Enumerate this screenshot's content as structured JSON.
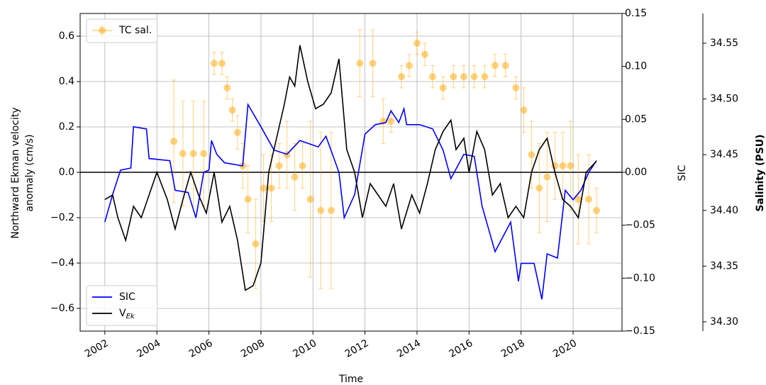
{
  "chart_data": {
    "type": "line",
    "xlabel": "Time",
    "ylabel": [
      "Northward Ekman velocity",
      "anomaly (cm/s)"
    ],
    "y2label": "SIC",
    "y2label_color": "#0000ff",
    "y3label": "Salinity (PSU)",
    "y3label_color": "#ffa500",
    "xlim": [
      2001.05,
      2021.88
    ],
    "xticks": [
      2002,
      2004,
      2006,
      2008,
      2010,
      2012,
      2014,
      2016,
      2018,
      2020
    ],
    "ylim": [
      -0.7,
      0.7
    ],
    "yticks": [
      {
        "value": -0.6,
        "label": "−0.6"
      },
      {
        "value": -0.4,
        "label": "−0.4"
      },
      {
        "value": -0.2,
        "label": "−0.2"
      },
      {
        "value": 0,
        "label": "0.0"
      },
      0.2,
      0.4,
      0.6
    ],
    "y2lim": [
      -0.15,
      0.15
    ],
    "y2ticks": [
      {
        "value": -0.15,
        "label": "−0.15"
      },
      {
        "value": -0.1,
        "label": "−0.10"
      },
      {
        "value": -0.05,
        "label": "−0.05"
      },
      {
        "value": 0,
        "label": "0.00"
      },
      0.05,
      {
        "value": 0.1,
        "label": "0.10"
      },
      0.15
    ],
    "y3lim": [
      34.2917,
      34.5767
    ],
    "y3ticks": [
      {
        "value": 34.3,
        "label": "34.30"
      },
      34.35,
      {
        "value": 34.4,
        "label": "34.40"
      },
      34.45,
      {
        "value": 34.5,
        "label": "34.50"
      },
      34.55
    ],
    "grid": true,
    "hline": 0,
    "series": [
      {
        "name": "SIC",
        "color": "#0000ff",
        "axis": "y2",
        "legend": "lower left",
        "x": [
          2002.0,
          2002.3,
          2002.6,
          2003.0,
          2003.1,
          2003.6,
          2003.7,
          2004.5,
          2004.7,
          2005.2,
          2005.5,
          2005.8,
          2006.0,
          2006.1,
          2006.3,
          2006.6,
          2007.3,
          2007.5,
          2008.0,
          2008.5,
          2009.0,
          2009.5,
          2010.2,
          2010.5,
          2011.0,
          2011.2,
          2011.6,
          2012.0,
          2012.4,
          2012.8,
          2013.0,
          2013.3,
          2013.5,
          2013.6,
          2014.1,
          2014.6,
          2015.0,
          2015.3,
          2015.8,
          2016.2,
          2016.5,
          2017.0,
          2017.6,
          2017.9,
          2018.0,
          2018.5,
          2018.8,
          2019.0,
          2019.4,
          2019.7,
          2020.0,
          2020.3,
          2020.6,
          2020.9
        ],
        "values": [
          -0.047,
          -0.021,
          0.002,
          0.004,
          0.043,
          0.041,
          0.013,
          0.011,
          -0.017,
          -0.019,
          -0.043,
          0,
          0.002,
          0.03,
          0.017,
          0.009,
          0.006,
          0.064,
          0.043,
          0.021,
          0.017,
          0.03,
          0.024,
          0.034,
          0,
          -0.043,
          -0.021,
          0.036,
          0.045,
          0.047,
          0.058,
          0.047,
          0.06,
          0.045,
          0.045,
          0.041,
          0.021,
          -0.006,
          0.017,
          0.015,
          -0.032,
          -0.075,
          -0.047,
          -0.103,
          -0.086,
          -0.086,
          -0.12,
          -0.077,
          -0.081,
          -0.017,
          -0.026,
          -0.017,
          0,
          0.011
        ]
      },
      {
        "name": "V",
        "name_sub": "Ek",
        "color": "#000000",
        "axis": "y",
        "legend": "lower left",
        "x": [
          2002.0,
          2002.3,
          2002.5,
          2002.8,
          2003.1,
          2003.4,
          2003.7,
          2004.0,
          2004.4,
          2004.7,
          2005.0,
          2005.3,
          2005.6,
          2005.9,
          2006.2,
          2006.5,
          2006.8,
          2007.1,
          2007.4,
          2007.7,
          2008.0,
          2008.3,
          2008.6,
          2008.9,
          2009.1,
          2009.3,
          2009.5,
          2009.8,
          2010.1,
          2010.4,
          2010.7,
          2011.0,
          2011.3,
          2011.6,
          2011.9,
          2012.2,
          2012.5,
          2012.8,
          2013.1,
          2013.4,
          2013.8,
          2014.1,
          2014.4,
          2014.7,
          2015.0,
          2015.3,
          2015.5,
          2015.8,
          2016.0,
          2016.3,
          2016.6,
          2016.9,
          2017.2,
          2017.5,
          2017.8,
          2018.1,
          2018.4,
          2018.7,
          2019.0,
          2019.3,
          2019.6,
          2019.9,
          2020.2,
          2020.5,
          2020.9
        ],
        "values": [
          -0.12,
          -0.1,
          -0.2,
          -0.3,
          -0.15,
          -0.2,
          -0.1,
          0.0,
          -0.12,
          -0.25,
          -0.12,
          0.0,
          -0.1,
          -0.18,
          0.0,
          -0.22,
          -0.15,
          -0.3,
          -0.52,
          -0.5,
          -0.4,
          0.0,
          0.15,
          0.3,
          0.42,
          0.38,
          0.56,
          0.4,
          0.28,
          0.3,
          0.35,
          0.5,
          0.1,
          0.0,
          -0.2,
          -0.05,
          -0.1,
          -0.15,
          -0.05,
          -0.25,
          -0.1,
          -0.18,
          -0.05,
          0.1,
          0.18,
          0.23,
          0.1,
          0.15,
          0.0,
          0.18,
          0.1,
          -0.1,
          -0.05,
          -0.2,
          -0.15,
          -0.2,
          0.0,
          0.1,
          0.15,
          0.0,
          -0.12,
          -0.15,
          -0.2,
          0.0,
          0.05
        ]
      },
      {
        "name": "TC sal.",
        "color": "#ffa500",
        "axis": "y3",
        "legend": "upper left",
        "x": [
          2004.65,
          2005.0,
          2005.4,
          2005.8,
          2006.2,
          2006.5,
          2006.7,
          2006.9,
          2007.1,
          2007.3,
          2007.5,
          2007.8,
          2008.1,
          2008.4,
          2008.7,
          2009.0,
          2009.3,
          2009.6,
          2009.9,
          2010.3,
          2010.7,
          2011.8,
          2012.3,
          2012.7,
          2013.0,
          2013.4,
          2013.7,
          2014.0,
          2014.3,
          2014.6,
          2015.0,
          2015.4,
          2015.8,
          2016.2,
          2016.6,
          2017.0,
          2017.4,
          2017.8,
          2018.1,
          2018.4,
          2018.7,
          2019.0,
          2019.3,
          2019.6,
          2019.9,
          2020.2,
          2020.6,
          2020.9
        ],
        "values": [
          34.462,
          34.451,
          34.451,
          34.451,
          34.532,
          34.532,
          34.51,
          34.49,
          34.47,
          34.44,
          34.41,
          34.37,
          34.42,
          34.42,
          34.44,
          34.45,
          34.43,
          34.44,
          34.41,
          34.4,
          34.4,
          34.532,
          34.532,
          34.48,
          34.48,
          34.52,
          34.53,
          34.55,
          34.54,
          34.52,
          34.51,
          34.52,
          34.52,
          34.52,
          34.52,
          34.53,
          34.53,
          34.51,
          34.49,
          34.45,
          34.42,
          34.43,
          34.44,
          34.44,
          34.44,
          34.41,
          34.41,
          34.4
        ],
        "errors": [
          0.055,
          0.047,
          0.047,
          0.047,
          0.01,
          0.01,
          0.01,
          0.01,
          0.015,
          0.02,
          0.03,
          0.04,
          0.03,
          0.03,
          0.02,
          0.03,
          0.03,
          0.02,
          0.07,
          0.07,
          0.07,
          0.03,
          0.03,
          0.02,
          0.01,
          0.01,
          0.01,
          0.01,
          0.01,
          0.01,
          0.01,
          0.01,
          0.01,
          0.01,
          0.01,
          0.01,
          0.01,
          0.01,
          0.02,
          0.03,
          0.04,
          0.04,
          0.03,
          0.03,
          0.04,
          0.04,
          0.04,
          0.02
        ]
      }
    ]
  }
}
